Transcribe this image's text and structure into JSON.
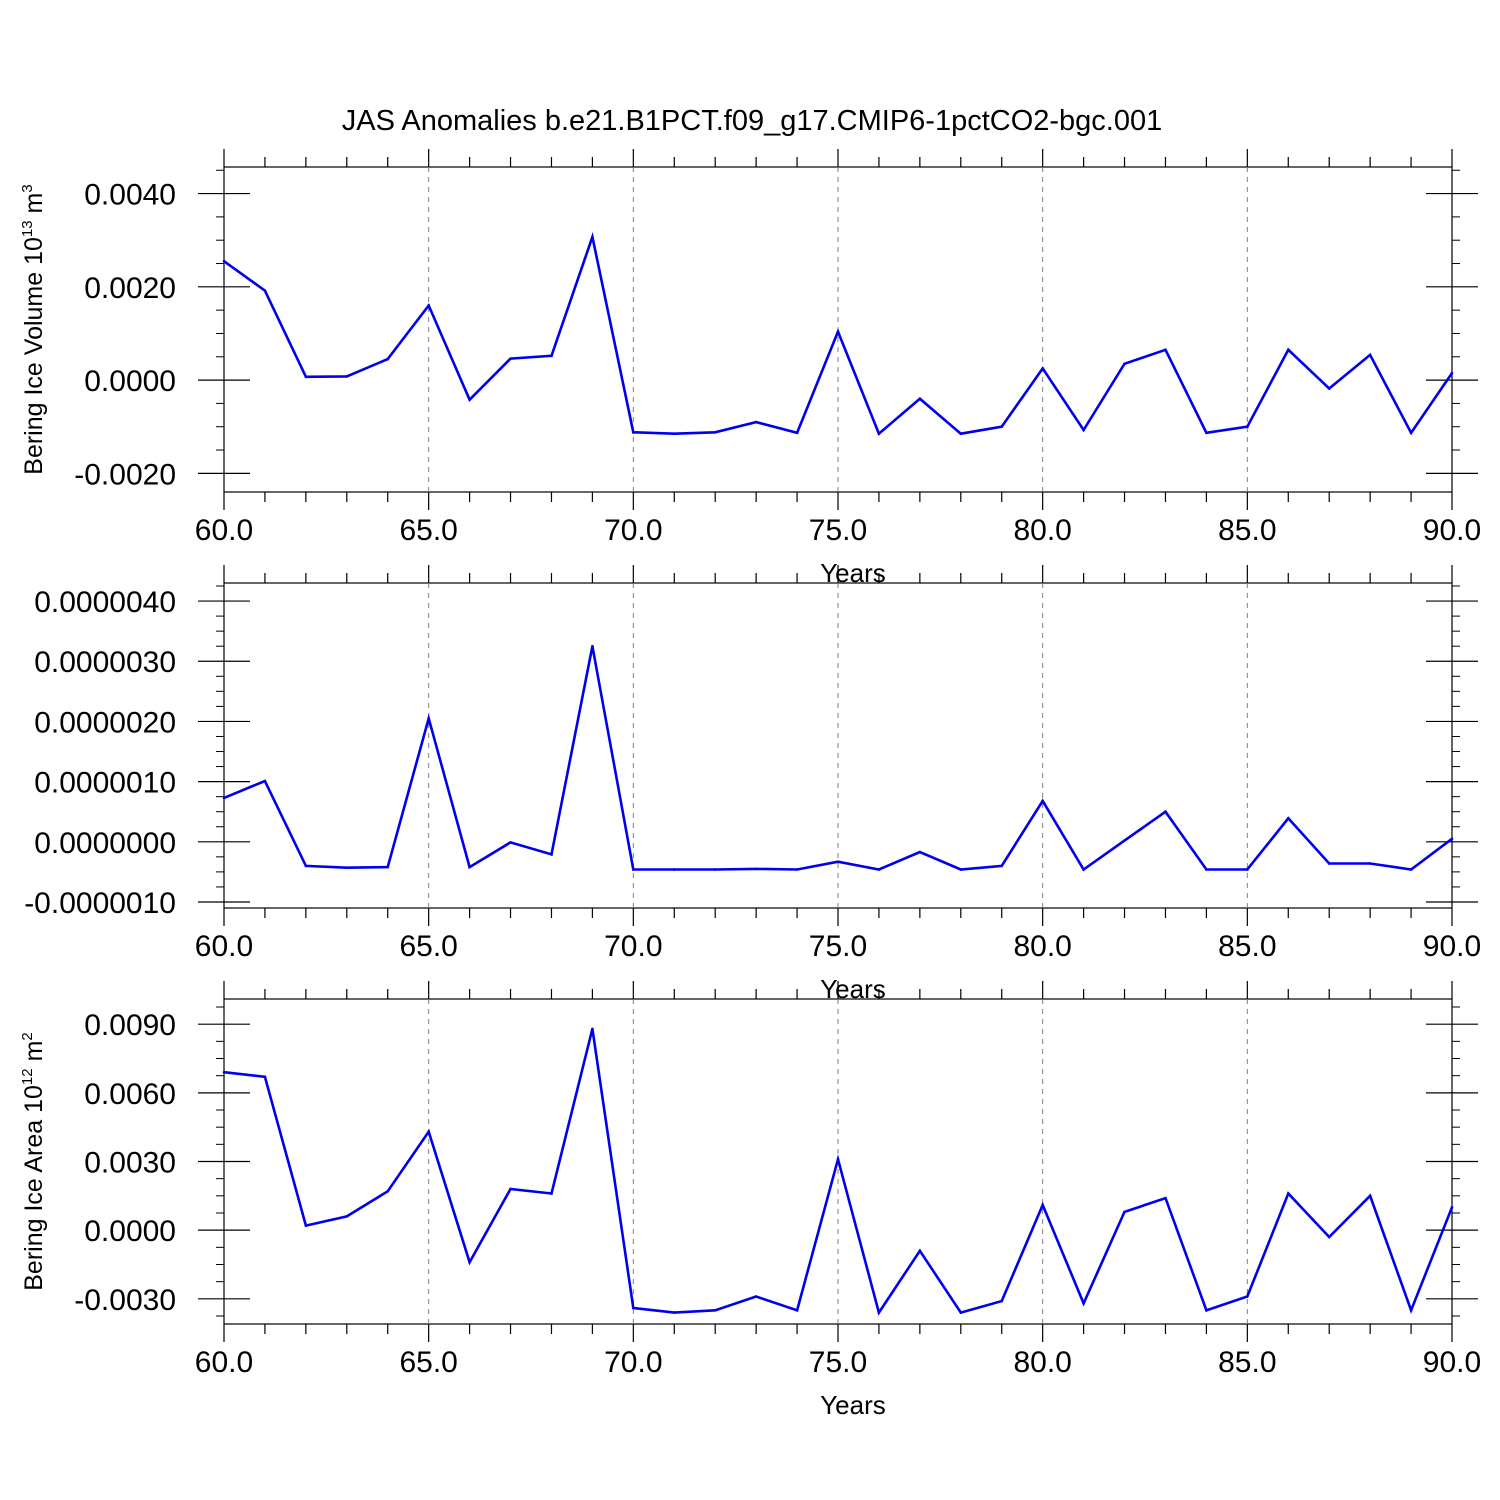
{
  "title": "JAS Anomalies b.e21.B1PCT.f09_g17.CMIP6-1pctCO2-bgc.001",
  "colors": {
    "line": "#0000ee",
    "axis": "#000000",
    "grid": "#808080",
    "background": "#ffffff"
  },
  "chart_data": [
    {
      "type": "line",
      "title": "JAS Anomalies b.e21.B1PCT.f09_g17.CMIP6-1pctCO2-bgc.001",
      "xlabel": "Years",
      "ylabel_text": "Bering Ice Volume 10",
      "ylabel_sup": "13",
      "ylabel_unit": "m",
      "ylabel_unit_sup": "3",
      "xlim": [
        60,
        90
      ],
      "ylim": [
        -0.002,
        0.004
      ],
      "xticks": [
        "60.0",
        "65.0",
        "70.0",
        "75.0",
        "80.0",
        "85.0",
        "90.0"
      ],
      "xtick_values": [
        60,
        65,
        70,
        75,
        80,
        85,
        90
      ],
      "yticks": [
        "0.0040",
        "0.0020",
        "0.0000",
        "-0.0020"
      ],
      "ytick_values": [
        0.004,
        0.002,
        0.0,
        -0.002
      ],
      "grid": "dashed vertical at major x ticks",
      "x": [
        60,
        61,
        62,
        63,
        64,
        65,
        66,
        67,
        68,
        69,
        70,
        71,
        72,
        73,
        74,
        75,
        76,
        77,
        78,
        79,
        80,
        81,
        82,
        83,
        84,
        85,
        86,
        87,
        88,
        89,
        90
      ],
      "y": [
        0.00255,
        0.00192,
        7e-05,
        8e-05,
        0.00045,
        0.0016,
        -0.00042,
        0.00046,
        0.00052,
        0.00307,
        -0.00112,
        -0.00115,
        -0.00112,
        -0.0009,
        -0.00113,
        0.00104,
        -0.00115,
        -0.0004,
        -0.00115,
        -0.001,
        0.00025,
        -0.00107,
        0.00035,
        0.00065,
        -0.00113,
        -0.001,
        0.00065,
        -0.00018,
        0.00054,
        -0.00113,
        0.00015
      ]
    },
    {
      "type": "line",
      "xlabel": "Years",
      "ylabel_text": "",
      "xlim": [
        60,
        90
      ],
      "ylim": [
        -1e-06,
        4e-06
      ],
      "xticks": [
        "60.0",
        "65.0",
        "70.0",
        "75.0",
        "80.0",
        "85.0",
        "90.0"
      ],
      "xtick_values": [
        60,
        65,
        70,
        75,
        80,
        85,
        90
      ],
      "yticks": [
        "0.0000040",
        "0.0000030",
        "0.0000020",
        "0.0000010",
        "0.0000000",
        "-0.0000010"
      ],
      "ytick_values": [
        4e-06,
        3e-06,
        2e-06,
        1e-06,
        0.0,
        -1e-06
      ],
      "grid": "dashed vertical at major x ticks",
      "x": [
        60,
        61,
        62,
        63,
        64,
        65,
        66,
        67,
        68,
        69,
        70,
        71,
        72,
        73,
        74,
        75,
        76,
        77,
        78,
        79,
        80,
        81,
        82,
        83,
        84,
        85,
        86,
        87,
        88,
        89,
        90
      ],
      "y": [
        7.3e-07,
        1.01e-06,
        -4e-07,
        -4.3e-07,
        -4.2e-07,
        2.05e-06,
        -4.2e-07,
        -1e-08,
        -2.1e-07,
        3.25e-06,
        -4.6e-07,
        -4.6e-07,
        -4.6e-07,
        -4.5e-07,
        -4.6e-07,
        -3.3e-07,
        -4.6e-07,
        -1.7e-07,
        -4.6e-07,
        -4e-07,
        6.8e-07,
        -4.6e-07,
        2e-08,
        5e-07,
        -4.6e-07,
        -4.6e-07,
        3.9e-07,
        -3.6e-07,
        -3.6e-07,
        -4.6e-07,
        5e-08
      ]
    },
    {
      "type": "line",
      "xlabel": "Years",
      "ylabel_text": "Bering Ice Area 10",
      "ylabel_sup": "12",
      "ylabel_unit": "m",
      "ylabel_unit_sup": "2",
      "xlim": [
        60,
        90
      ],
      "ylim": [
        -0.004,
        0.01
      ],
      "xticks": [
        "60.0",
        "65.0",
        "70.0",
        "75.0",
        "80.0",
        "85.0",
        "90.0"
      ],
      "xtick_values": [
        60,
        65,
        70,
        75,
        80,
        85,
        90
      ],
      "yticks": [
        "0.0090",
        "0.0060",
        "0.0030",
        "0.0000",
        "-0.0030"
      ],
      "ytick_values": [
        0.009,
        0.006,
        0.003,
        0.0,
        -0.003
      ],
      "grid": "dashed vertical at major x ticks",
      "x": [
        60,
        61,
        62,
        63,
        64,
        65,
        66,
        67,
        68,
        69,
        70,
        71,
        72,
        73,
        74,
        75,
        76,
        77,
        78,
        79,
        80,
        81,
        82,
        83,
        84,
        85,
        86,
        87,
        88,
        89,
        90
      ],
      "y": [
        0.0069,
        0.0067,
        0.0002,
        0.0006,
        0.0017,
        0.0043,
        -0.0014,
        0.0018,
        0.0016,
        0.0088,
        -0.0034,
        -0.0036,
        -0.0035,
        -0.0029,
        -0.0035,
        0.0031,
        -0.0036,
        -0.0009,
        -0.0036,
        -0.0031,
        0.0011,
        -0.0032,
        0.0008,
        0.0014,
        -0.0035,
        -0.0029,
        0.0016,
        -0.0003,
        0.0015,
        -0.0035,
        0.001
      ]
    }
  ]
}
